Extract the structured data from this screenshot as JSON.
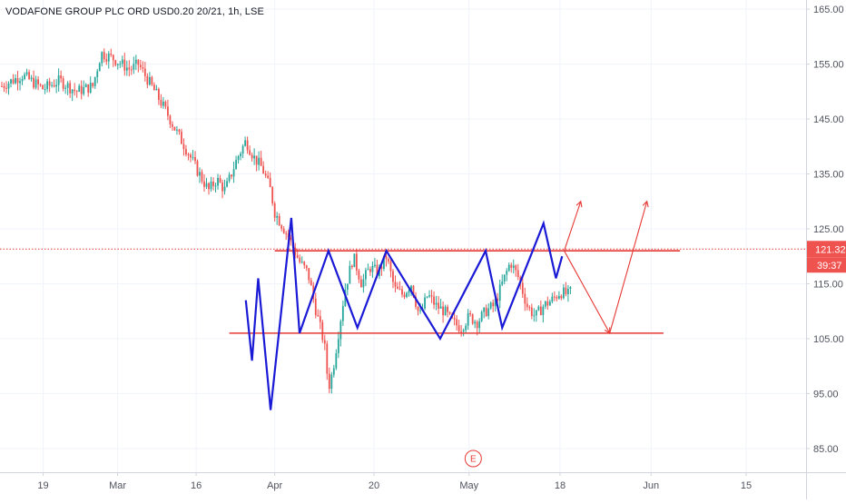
{
  "header": {
    "title": "VODAFONE GROUP PLC ORD USD0.20 20/21, 1h, LSE"
  },
  "colors": {
    "up": "#26a69a",
    "down": "#ef5350",
    "pattern": "#1a1ad6",
    "level": "#e53935",
    "grid": "#f0f3fa",
    "axis_text": "#50535e",
    "price_tag_bg": "#ef5350"
  },
  "chart_data": {
    "type": "candlestick",
    "ylim": [
      82,
      168
    ],
    "y_ticks": [
      85,
      95,
      105,
      115,
      125,
      135,
      145,
      155,
      165
    ],
    "y_tick_labels": [
      "85.00",
      "95.00",
      "105.00",
      "115.00",
      "125.00",
      "135.00",
      "145.00",
      "155.00",
      "165.00"
    ],
    "x_ticks": [
      "19",
      "Mar",
      "16",
      "Apr",
      "20",
      "May",
      "18",
      "Jun",
      "15"
    ],
    "last_price": 121.32,
    "last_price_label": "121.32",
    "countdown_label": "39:37",
    "earnings_marker": "E",
    "price_path": [
      [
        0,
        151
      ],
      [
        5,
        153
      ],
      [
        10,
        150.5
      ],
      [
        14,
        152
      ],
      [
        18,
        150
      ],
      [
        22,
        151
      ],
      [
        24,
        157
      ],
      [
        27,
        156
      ],
      [
        31,
        154
      ],
      [
        33,
        155
      ],
      [
        37,
        150
      ],
      [
        40,
        146
      ],
      [
        42,
        143
      ],
      [
        45,
        139
      ],
      [
        47,
        136
      ],
      [
        50,
        132
      ],
      [
        52,
        134
      ],
      [
        54,
        132
      ],
      [
        57,
        138
      ],
      [
        59,
        141
      ],
      [
        61,
        138
      ],
      [
        63,
        136
      ],
      [
        65,
        132
      ],
      [
        66,
        128
      ],
      [
        69,
        124
      ],
      [
        72,
        119
      ],
      [
        74,
        117
      ],
      [
        76,
        110
      ],
      [
        78,
        104
      ],
      [
        79,
        96
      ],
      [
        80,
        99
      ],
      [
        83,
        114
      ],
      [
        85,
        120
      ],
      [
        87,
        115
      ],
      [
        89,
        118
      ],
      [
        91,
        117
      ],
      [
        93,
        120
      ],
      [
        95,
        114
      ],
      [
        97,
        113
      ],
      [
        99,
        115
      ],
      [
        101,
        109
      ],
      [
        103,
        113
      ],
      [
        105,
        111
      ],
      [
        107,
        110
      ],
      [
        109,
        108
      ],
      [
        111,
        107
      ],
      [
        113,
        109
      ],
      [
        115,
        108
      ],
      [
        117,
        110
      ],
      [
        119,
        111
      ],
      [
        121,
        115
      ],
      [
        123,
        119
      ],
      [
        125,
        116
      ],
      [
        127,
        111
      ],
      [
        129,
        109
      ],
      [
        131,
        111
      ],
      [
        133,
        112
      ],
      [
        135,
        113.5
      ],
      [
        137,
        113
      ],
      [
        138,
        114
      ]
    ],
    "pattern_zigzag": [
      [
        59,
        112
      ],
      [
        60.5,
        101
      ],
      [
        62,
        116
      ],
      [
        65,
        92
      ],
      [
        70,
        127
      ],
      [
        72,
        106
      ],
      [
        79,
        121
      ],
      [
        86,
        107
      ],
      [
        93,
        121
      ],
      [
        106,
        105
      ],
      [
        117,
        121
      ],
      [
        121,
        107
      ],
      [
        131,
        126
      ],
      [
        134,
        116
      ],
      [
        135.5,
        120
      ]
    ],
    "resistance_line": {
      "value": 121,
      "x_start": 66,
      "x_end": 164
    },
    "support_line": {
      "value": 106,
      "x_start": 55,
      "x_end": 160
    },
    "projection_paths": [
      [
        [
          136,
          121
        ],
        [
          140,
          130
        ]
      ],
      [
        [
          136,
          121
        ],
        [
          147,
          106
        ],
        [
          156,
          130
        ]
      ]
    ],
    "x_tick_positions": [
      10,
      28,
      47,
      66,
      90,
      113,
      135,
      157,
      180
    ]
  }
}
